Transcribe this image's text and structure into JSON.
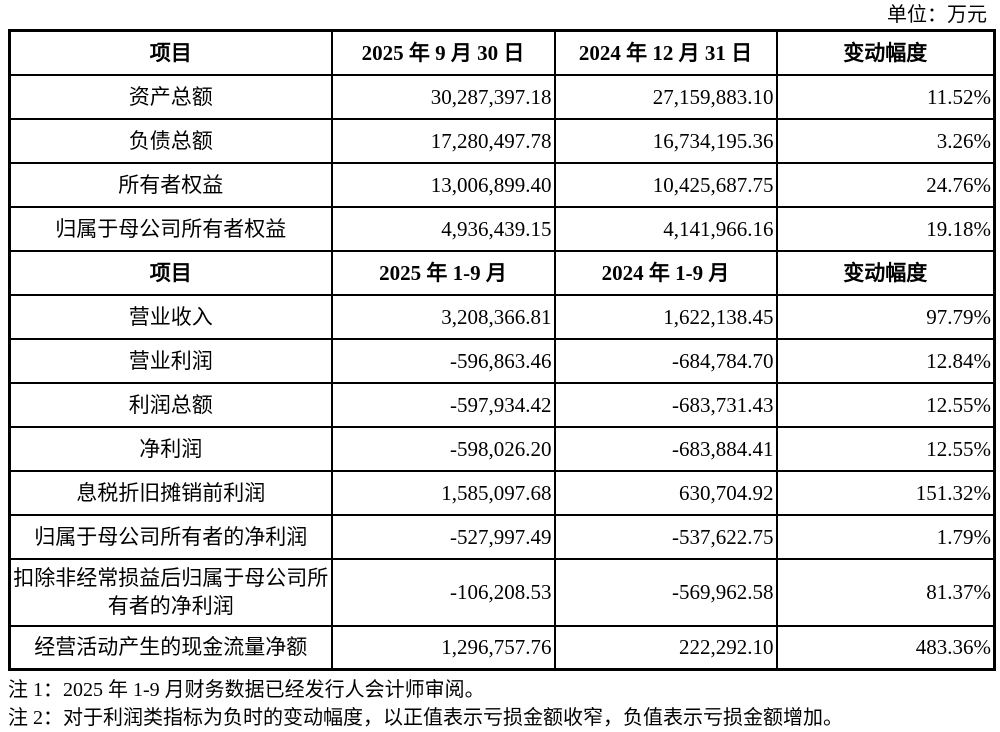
{
  "unit_label": "单位：万元",
  "table": {
    "sections": [
      {
        "header": {
          "item": "项目",
          "period1": "2025 年 9 月 30 日",
          "period2": "2024 年 12 月 31 日",
          "change": "变动幅度"
        },
        "rows": [
          {
            "label": "资产总额",
            "values": [
              "30,287,397.18",
              "27,159,883.10",
              "11.52%"
            ]
          },
          {
            "label": "负债总额",
            "values": [
              "17,280,497.78",
              "16,734,195.36",
              "3.26%"
            ]
          },
          {
            "label": "所有者权益",
            "values": [
              "13,006,899.40",
              "10,425,687.75",
              "24.76%"
            ]
          },
          {
            "label": "归属于母公司所有者权益",
            "values": [
              "4,936,439.15",
              "4,141,966.16",
              "19.18%"
            ]
          }
        ]
      },
      {
        "header": {
          "item": "项目",
          "period1": "2025 年 1-9 月",
          "period2": "2024 年 1-9 月",
          "change": "变动幅度"
        },
        "rows": [
          {
            "label": "营业收入",
            "values": [
              "3,208,366.81",
              "1,622,138.45",
              "97.79%"
            ]
          },
          {
            "label": "营业利润",
            "values": [
              "-596,863.46",
              "-684,784.70",
              "12.84%"
            ]
          },
          {
            "label": "利润总额",
            "values": [
              "-597,934.42",
              "-683,731.43",
              "12.55%"
            ]
          },
          {
            "label": "净利润",
            "values": [
              "-598,026.20",
              "-683,884.41",
              "12.55%"
            ]
          },
          {
            "label": "息税折旧摊销前利润",
            "values": [
              "1,585,097.68",
              "630,704.92",
              "151.32%"
            ]
          },
          {
            "label": "归属于母公司所有者的净利润",
            "values": [
              "-527,997.49",
              "-537,622.75",
              "1.79%"
            ]
          },
          {
            "label": "扣除非经常损益后归属于母公司所有者的净利润",
            "values": [
              "-106,208.53",
              "-569,962.58",
              "81.37%"
            ]
          },
          {
            "label": "经营活动产生的现金流量净额",
            "values": [
              "1,296,757.76",
              "222,292.10",
              "483.36%"
            ]
          }
        ]
      }
    ]
  },
  "notes": [
    "注 1：2025 年 1-9 月财务数据已经发行人会计师审阅。",
    "注 2：对于利润类指标为负时的变动幅度，以正值表示亏损金额收窄，负值表示亏损金额增加。"
  ]
}
